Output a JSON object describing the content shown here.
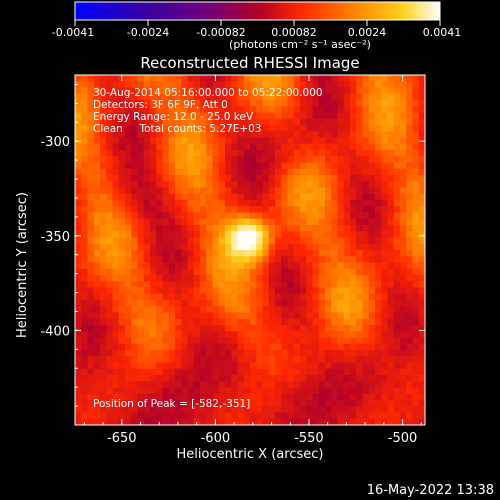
{
  "colorbar": {
    "ticks": [
      "-0.0041",
      "-0.0024",
      "-0.00082",
      "0.00082",
      "0.0024",
      "0.0041"
    ],
    "unit_label": "(photons cm⁻² s⁻¹ asec⁻²)"
  },
  "chart_data": {
    "type": "heatmap",
    "title": "Reconstructed RHESSI Image",
    "xlabel": "Heliocentric X (arcsec)",
    "ylabel": "Heliocentric Y (arcsec)",
    "xlim": [
      -675,
      -488
    ],
    "ylim": [
      -450,
      -265
    ],
    "x_ticks": [
      "-650",
      "-600",
      "-550",
      "-500"
    ],
    "x_tick_values": [
      -650,
      -600,
      -550,
      -500
    ],
    "y_ticks": [
      "-300",
      "-350",
      "-400"
    ],
    "y_tick_values": [
      -300,
      -350,
      -400
    ],
    "color_range": [
      -0.0041,
      0.0041
    ],
    "colormap": [
      "#0000ff",
      "#3a00a0",
      "#6b0080",
      "#b0002a",
      "#ff2800",
      "#ff8c00",
      "#ffd21e",
      "#ffffff"
    ],
    "annotations": {
      "line1": "30-Aug-2014 05:16:00.000 to 05:22:00.000",
      "line2": "Detectors: 3F 6F 9F, Att 0",
      "line3": "Energy Range: 12.0 - 25.0 keV",
      "line4": "Clean     Total counts: 5.27E+03",
      "peak": "Position of Peak = [-582,-351]"
    },
    "peak": {
      "x": -582,
      "y": -351,
      "value": 0.0041
    }
  },
  "footer": {
    "timestamp": "16-May-2022 13:38"
  }
}
